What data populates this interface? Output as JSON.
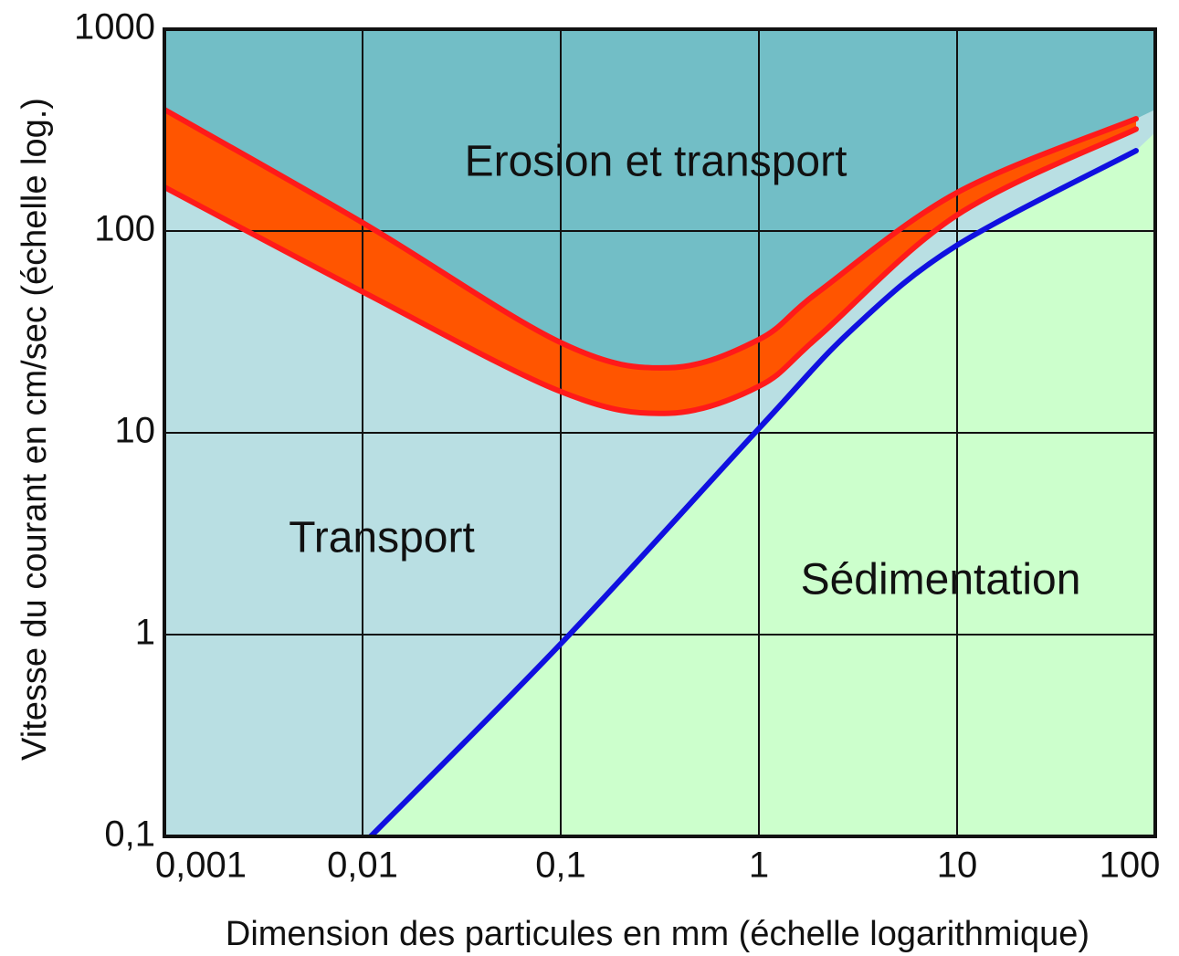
{
  "chart_data": {
    "type": "line",
    "x_label": "Dimension des particules en mm (échelle logarithmique)",
    "y_label": "Vitesse du courant en cm/sec (échelle log.)",
    "xscale": "log",
    "yscale": "log",
    "grid": true,
    "xlim": [
      0.001,
      100
    ],
    "ylim": [
      0.1,
      1000
    ],
    "xticks": [
      {
        "value": 0.001,
        "label": "0,001"
      },
      {
        "value": 0.01,
        "label": "0,01"
      },
      {
        "value": 0.1,
        "label": "0,1"
      },
      1,
      10,
      100
    ],
    "yticks": [
      {
        "value": 0.1,
        "label": "0,1"
      },
      1,
      10,
      100,
      1000
    ],
    "series": [
      {
        "color": "#ff1a1a",
        "x": [
          0.001,
          0.01,
          0.1,
          0.35,
          1,
          2,
          10,
          80
        ],
        "values": [
          400,
          110,
          28,
          21,
          29,
          50,
          155,
          360
        ]
      },
      {
        "color": "#ff1a1a",
        "x": [
          0.001,
          0.01,
          0.1,
          0.35,
          1,
          2,
          10,
          80
        ],
        "values": [
          165,
          50,
          16,
          12.5,
          17,
          30,
          120,
          320
        ]
      },
      {
        "color": "#1010e0",
        "x": [
          0.011,
          0.1,
          1,
          3,
          10,
          80
        ],
        "values": [
          0.1,
          0.9,
          10.5,
          33,
          85,
          250
        ]
      }
    ],
    "band_color": "#ff5500",
    "region_colors": {
      "erosion": "#72bec6",
      "transport": "#b9dfe3",
      "sedimentation": "#ccffcc"
    },
    "annotations": [
      {
        "text": "Erosion et transport"
      },
      {
        "text": "Transport"
      },
      {
        "text": "Sédimentation"
      }
    ]
  }
}
